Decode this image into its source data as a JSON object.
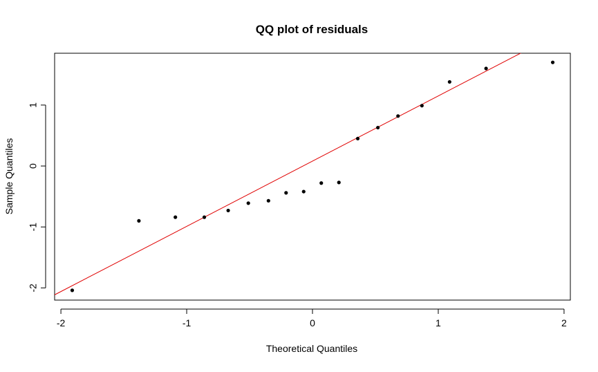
{
  "chart_data": {
    "type": "scatter",
    "title": "QQ plot of residuals",
    "xlabel": "Theoretical Quantiles",
    "ylabel": "Sample Quantiles",
    "xlim": [
      -2.05,
      2.05
    ],
    "ylim": [
      -2.2,
      1.85
    ],
    "xticks": [
      -2,
      -1,
      0,
      1,
      2
    ],
    "yticks": [
      -2,
      -1,
      0,
      1
    ],
    "grid": false,
    "legend": "none",
    "colors": {
      "points": "#000000",
      "reference_line": "#e00000",
      "axes": "#000000"
    },
    "reference_line": {
      "intercept": 0.08,
      "slope": 1.07
    },
    "series": [
      {
        "x": [
          -1.91,
          -1.38,
          -1.09,
          -0.86,
          -0.67,
          -0.51,
          -0.35,
          -0.21,
          -0.07,
          0.07,
          0.21,
          0.36,
          0.52,
          0.68,
          0.87,
          1.09,
          1.38,
          1.91
        ],
        "y": [
          -2.04,
          -0.9,
          -0.84,
          -0.84,
          -0.73,
          -0.61,
          -0.57,
          -0.44,
          -0.42,
          -0.28,
          -0.27,
          0.45,
          0.63,
          0.82,
          0.99,
          1.38,
          1.6,
          1.7
        ]
      }
    ]
  }
}
